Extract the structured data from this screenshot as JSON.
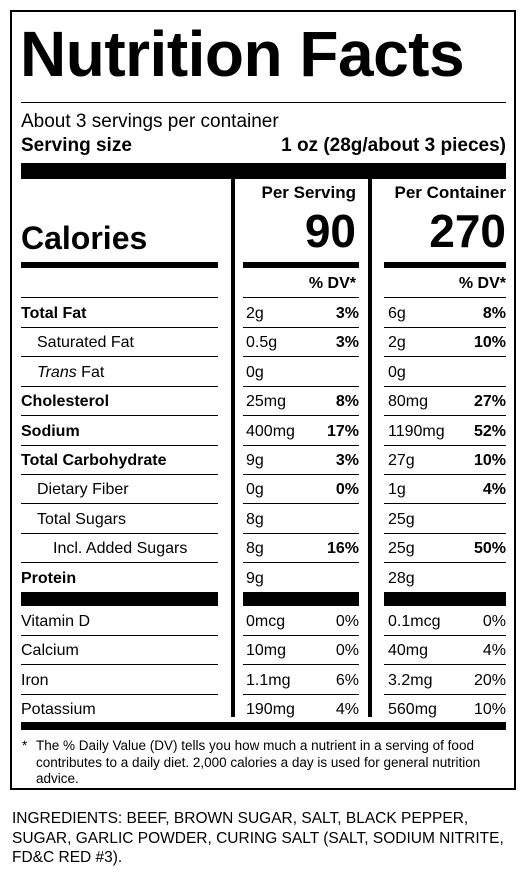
{
  "title": "Nutrition Facts",
  "servings_per_container": "About 3 servings per container",
  "serving_size_label": "Serving size",
  "serving_size_value": "1 oz (28g/about 3 pieces)",
  "columns": {
    "per_serving": "Per Serving",
    "per_container": "Per Container"
  },
  "calories": {
    "label": "Calories",
    "per_serving": "90",
    "per_container": "270"
  },
  "dv_header": "% DV*",
  "nutrients": [
    {
      "name": "Total Fat",
      "bold": true,
      "indent": 0,
      "s_amt": "2g",
      "s_dv": "3%",
      "c_amt": "6g",
      "c_dv": "8%"
    },
    {
      "name": "Saturated Fat",
      "bold": false,
      "indent": 1,
      "s_amt": "0.5g",
      "s_dv": "3%",
      "c_amt": "2g",
      "c_dv": "10%"
    },
    {
      "name_italic": "Trans",
      "name": " Fat",
      "bold": false,
      "indent": 1,
      "s_amt": "0g",
      "s_dv": "",
      "c_amt": "0g",
      "c_dv": ""
    },
    {
      "name": "Cholesterol",
      "bold": true,
      "indent": 0,
      "s_amt": "25mg",
      "s_dv": "8%",
      "c_amt": "80mg",
      "c_dv": "27%"
    },
    {
      "name": "Sodium",
      "bold": true,
      "indent": 0,
      "s_amt": "400mg",
      "s_dv": "17%",
      "c_amt": "1190mg",
      "c_dv": "52%"
    },
    {
      "name": "Total Carbohydrate",
      "bold": true,
      "indent": 0,
      "s_amt": "9g",
      "s_dv": "3%",
      "c_amt": "27g",
      "c_dv": "10%"
    },
    {
      "name": "Dietary Fiber",
      "bold": false,
      "indent": 1,
      "s_amt": "0g",
      "s_dv": "0%",
      "c_amt": "1g",
      "c_dv": "4%"
    },
    {
      "name": "Total Sugars",
      "bold": false,
      "indent": 1,
      "s_amt": "8g",
      "s_dv": "",
      "c_amt": "25g",
      "c_dv": ""
    },
    {
      "name": "Incl. Added Sugars",
      "bold": false,
      "indent": 2,
      "s_amt": "8g",
      "s_dv": "16%",
      "c_amt": "25g",
      "c_dv": "50%"
    },
    {
      "name": "Protein",
      "bold": true,
      "indent": 0,
      "s_amt": "9g",
      "s_dv": "",
      "c_amt": "28g",
      "c_dv": ""
    }
  ],
  "vitamins": [
    {
      "name": "Vitamin D",
      "s_amt": "0mcg",
      "s_dv": "0%",
      "c_amt": "0.1mcg",
      "c_dv": "0%"
    },
    {
      "name": "Calcium",
      "s_amt": "10mg",
      "s_dv": "0%",
      "c_amt": "40mg",
      "c_dv": "4%"
    },
    {
      "name": "Iron",
      "s_amt": "1.1mg",
      "s_dv": "6%",
      "c_amt": "3.2mg",
      "c_dv": "20%"
    },
    {
      "name": "Potassium",
      "s_amt": "190mg",
      "s_dv": "4%",
      "c_amt": "560mg",
      "c_dv": "10%"
    }
  ],
  "footnote_star": "*",
  "footnote": "The % Daily Value (DV) tells you how much a nutrient in a serving of food contributes to a daily diet. 2,000 calories a day is used for general nutrition advice.",
  "ingredients": "INGREDIENTS: BEEF, BROWN SUGAR, SALT, BLACK PEPPER, SUGAR, GARLIC POWDER, CURING SALT (SALT, SODIUM NITRITE, FD&C RED #3)."
}
